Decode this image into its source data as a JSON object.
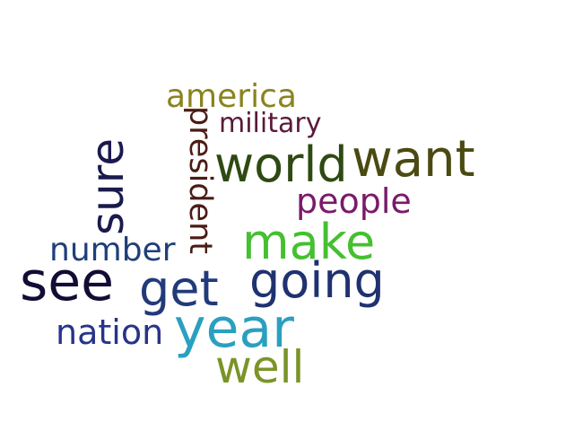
{
  "words": {
    "america": {
      "text": "america",
      "color": "#8a8320"
    },
    "military": {
      "text": "military",
      "color": "#5a1a3a"
    },
    "president": {
      "text": "president",
      "color": "#4a1c14"
    },
    "sure": {
      "text": "sure",
      "color": "#1a1a4e"
    },
    "world": {
      "text": "world",
      "color": "#2e4a12"
    },
    "want": {
      "text": "want",
      "color": "#4a4a12"
    },
    "people": {
      "text": "people",
      "color": "#7a1a6a"
    },
    "number": {
      "text": "number",
      "color": "#1f3f7a"
    },
    "make": {
      "text": "make",
      "color": "#44c030"
    },
    "see": {
      "text": "see",
      "color": "#140c34"
    },
    "get": {
      "text": "get",
      "color": "#223a7a"
    },
    "going": {
      "text": "going",
      "color": "#1f3270"
    },
    "nation": {
      "text": "nation",
      "color": "#27348a"
    },
    "year": {
      "text": "year",
      "color": "#2aa0c0"
    },
    "well": {
      "text": "well",
      "color": "#7a9428"
    }
  }
}
